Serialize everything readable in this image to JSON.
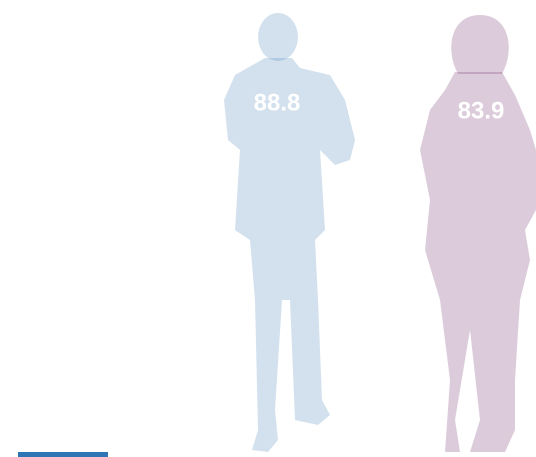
{
  "chart_data": {
    "type": "pictograph",
    "categories": [
      null,
      null
    ],
    "values": [
      88.8,
      83.9
    ],
    "colors": [
      "#4f89bd",
      "#73356f"
    ],
    "ylim": [
      0,
      100
    ]
  }
}
